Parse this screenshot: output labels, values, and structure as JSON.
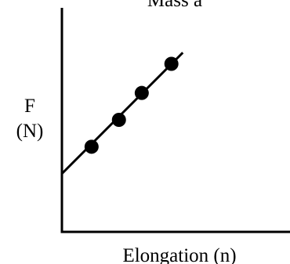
{
  "chart_data": {
    "type": "scatter",
    "title": "Mass a",
    "xlabel": "Elongation (n)",
    "ylabel_line1": "F",
    "ylabel_line2": "(N)",
    "xlim": [
      0,
      10
    ],
    "ylim": [
      0,
      10
    ],
    "grid": false,
    "points": [
      {
        "x": 1.3,
        "y": 3.8
      },
      {
        "x": 2.5,
        "y": 5.0
      },
      {
        "x": 3.5,
        "y": 6.2
      },
      {
        "x": 4.8,
        "y": 7.5
      }
    ],
    "fit_line": {
      "x_start": 0.0,
      "y_start": 2.6,
      "x_end": 5.3,
      "y_end": 8.0
    },
    "colors": {
      "axis": "#000000",
      "points": "#000000",
      "line": "#000000"
    }
  }
}
